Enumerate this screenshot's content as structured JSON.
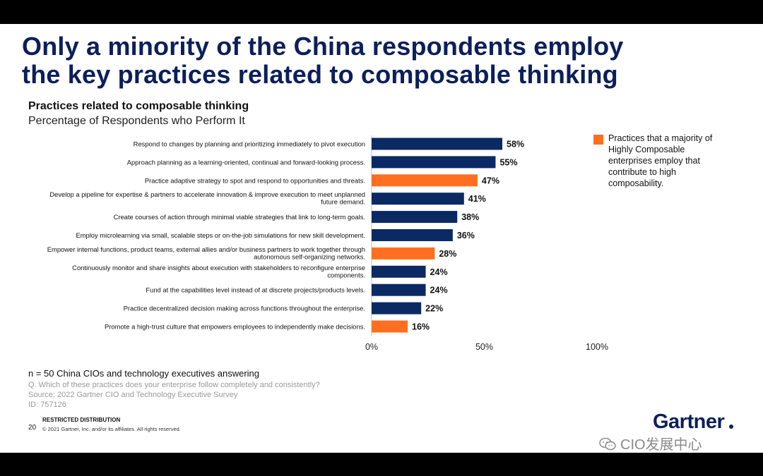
{
  "slide": {
    "title_line1": "Only a minority of the China respondents employ",
    "title_line2": "the key practices related to composable thinking",
    "chart_heading": "Practices related to composable thinking",
    "chart_subheading": "Percentage of Respondents who Perform It"
  },
  "legend": {
    "text": "Practices that a majority of Highly Composable enterprises employ that contribute to high composability."
  },
  "footer": {
    "n_note": "n = 50 China CIOs and technology executives answering",
    "question": "Q. Which of these practices does your enterprise follow completely and consistently?",
    "source": "Source: 2022 Gartner CIO and Technology Executive Survey",
    "id": "ID: 757126",
    "restricted": "RESTRICTED DISTRIBUTION",
    "page_number": "20",
    "copyright": "© 2021 Gartner, Inc. and/or its affiliates. All rights reserved.",
    "brand": "Gartner",
    "watermark": "CIO发展中心"
  },
  "colors": {
    "navy": "#0b2a63",
    "orange": "#ff6f1f"
  },
  "chart_data": {
    "type": "bar",
    "orientation": "horizontal",
    "title": "Practices related to composable thinking",
    "subtitle": "Percentage of Respondents who Perform It",
    "xlim": [
      0,
      100
    ],
    "x_ticks": [
      "0%",
      "50%",
      "100%"
    ],
    "x_tick_values": [
      0,
      50,
      100
    ],
    "categories": [
      [
        "Respond to changes by planning and prioritizing immediately to pivot execution"
      ],
      [
        "Approach planning as a learning-oriented, continual and forward-looking process."
      ],
      [
        "Practice adaptive strategy to spot and respond to opportunities and threats."
      ],
      [
        "Develop a pipeline for expertise & partners to accelerate innovation & improve execution to meet unplanned",
        "future demand."
      ],
      [
        "Create courses of action through minimal viable strategies  that link to long-term goals."
      ],
      [
        "Employ microlearning via small, scalable steps or on-the-job simulations for new skill development."
      ],
      [
        "Empower internal functions, product teams, external allies and/or business partners to work together through",
        "autonomous self-organizing networks."
      ],
      [
        "Continuously monitor and share insights about execution with stakeholders to reconfigure enterprise",
        "components."
      ],
      [
        "Fund at the capabilities level instead of at discrete projects/products levels."
      ],
      [
        "Practice decentralized decision making across functions throughout the enterprise."
      ],
      [
        "Promote a high-trust culture that empowers employees to independently make decisions."
      ]
    ],
    "values": [
      58,
      55,
      47,
      41,
      38,
      36,
      28,
      24,
      24,
      22,
      16
    ],
    "value_labels": [
      "58%",
      "55%",
      "47%",
      "41%",
      "38%",
      "36%",
      "28%",
      "24%",
      "24%",
      "22%",
      "16%"
    ],
    "highlighted": [
      false,
      false,
      true,
      false,
      false,
      false,
      true,
      false,
      false,
      false,
      true
    ]
  }
}
